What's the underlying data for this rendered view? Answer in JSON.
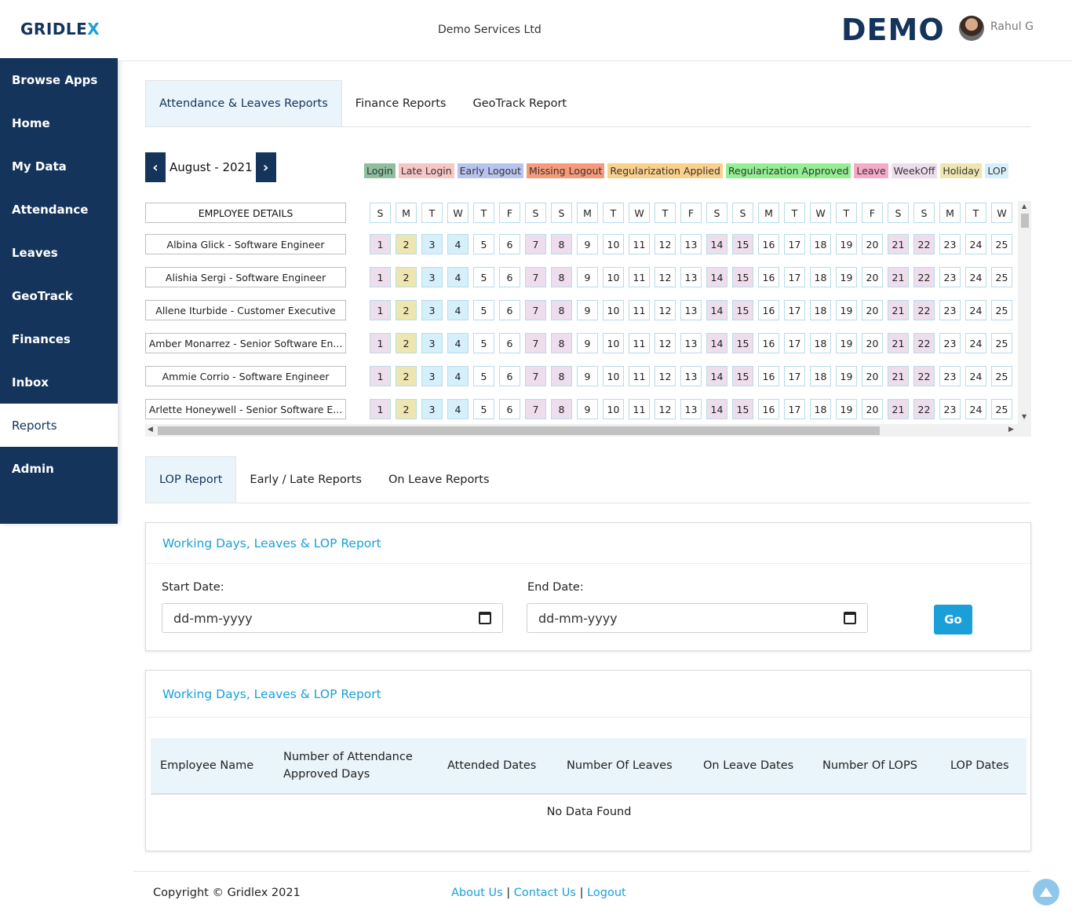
{
  "sidebar": {
    "logo_main": "GRIDLE",
    "logo_x": "X",
    "items": [
      {
        "label": "Browse Apps",
        "active": false
      },
      {
        "label": "Home",
        "active": false
      },
      {
        "label": "My Data",
        "active": false
      },
      {
        "label": "Attendance",
        "active": false
      },
      {
        "label": "Leaves",
        "active": false
      },
      {
        "label": "GeoTrack",
        "active": false
      },
      {
        "label": "Finances",
        "active": false
      },
      {
        "label": "Inbox",
        "active": false
      },
      {
        "label": "Reports",
        "active": true
      },
      {
        "label": "Admin",
        "active": false
      }
    ]
  },
  "header": {
    "company": "Demo Services Ltd",
    "brand": "DEMO",
    "user": "Rahul G"
  },
  "top_tabs": [
    {
      "label": "Attendance & Leaves Reports",
      "active": true
    },
    {
      "label": "Finance Reports",
      "active": false
    },
    {
      "label": "GeoTrack Report",
      "active": false
    }
  ],
  "calendar": {
    "month_label": "August - 2021",
    "prev_symbol": "‹",
    "next_symbol": "›",
    "emp_header": "EMPLOYEE DETAILS",
    "legend": [
      {
        "label": "Login",
        "color": "#8fbf9f"
      },
      {
        "label": "Late Login",
        "color": "#f7c6c6"
      },
      {
        "label": "Early Logout",
        "color": "#b9c3f0"
      },
      {
        "label": "Missing Logout",
        "color": "#f79a79"
      },
      {
        "label": "Regularization Applied",
        "color": "#fbd08a"
      },
      {
        "label": "Regularization Approved",
        "color": "#92ef92"
      },
      {
        "label": "Leave",
        "color": "#f7a9c8"
      },
      {
        "label": "WeekOff",
        "color": "#eeddec"
      },
      {
        "label": "Holiday",
        "color": "#eee6b0"
      },
      {
        "label": "LOP",
        "color": "#d6f0fb"
      }
    ],
    "weekdays": [
      "S",
      "M",
      "T",
      "W",
      "T",
      "F",
      "S",
      "S",
      "M",
      "T",
      "W",
      "T",
      "F",
      "S",
      "S",
      "M",
      "T",
      "W",
      "T",
      "F",
      "S",
      "S",
      "M",
      "T",
      "W"
    ],
    "days": [
      "1",
      "2",
      "3",
      "4",
      "5",
      "6",
      "7",
      "8",
      "9",
      "10",
      "11",
      "12",
      "13",
      "14",
      "15",
      "16",
      "17",
      "18",
      "19",
      "20",
      "21",
      "22",
      "23",
      "24",
      "25"
    ],
    "day_status": [
      "weekoff",
      "holiday",
      "lop",
      "lop",
      "",
      "",
      "weekoff",
      "weekoff",
      "",
      "",
      "",
      "",
      "",
      "weekoff",
      "weekoff",
      "",
      "",
      "",
      "",
      "",
      "weekoff",
      "weekoff",
      "",
      "",
      ""
    ],
    "status_colors": {
      "weekoff": "#eeddec",
      "holiday": "#eee6b0",
      "lop": "#d6f0fb"
    },
    "employees": [
      "Albina Glick - Software Engineer",
      "Alishia Sergi - Software Engineer",
      "Allene Iturbide - Customer Executive",
      "Amber Monarrez - Senior Software En...",
      "Ammie Corrio - Software Engineer",
      "Arlette Honeywell - Senior Software E..."
    ]
  },
  "sub_tabs": [
    {
      "label": "LOP Report",
      "active": true
    },
    {
      "label": "Early / Late Reports",
      "active": false
    },
    {
      "label": "On Leave Reports",
      "active": false
    }
  ],
  "filter_card": {
    "title": "Working Days, Leaves & LOP Report",
    "start_label": "Start Date:",
    "end_label": "End Date:",
    "start_placeholder": "dd-mm-yyyy",
    "end_placeholder": "dd-mm-yyyy",
    "go_label": "Go"
  },
  "result_card": {
    "title": "Working Days, Leaves & LOP Report",
    "columns": [
      "Employee Name",
      "Number of Attendance Approved Days",
      "Attended Dates",
      "Number Of Leaves",
      "On Leave Dates",
      "Number Of LOPS",
      "LOP Dates"
    ],
    "empty_text": "No Data Found"
  },
  "footer": {
    "copyright": "Copyright © Gridlex 2021",
    "links": [
      "About Us",
      "Contact Us",
      "Logout"
    ],
    "separator": " | "
  }
}
